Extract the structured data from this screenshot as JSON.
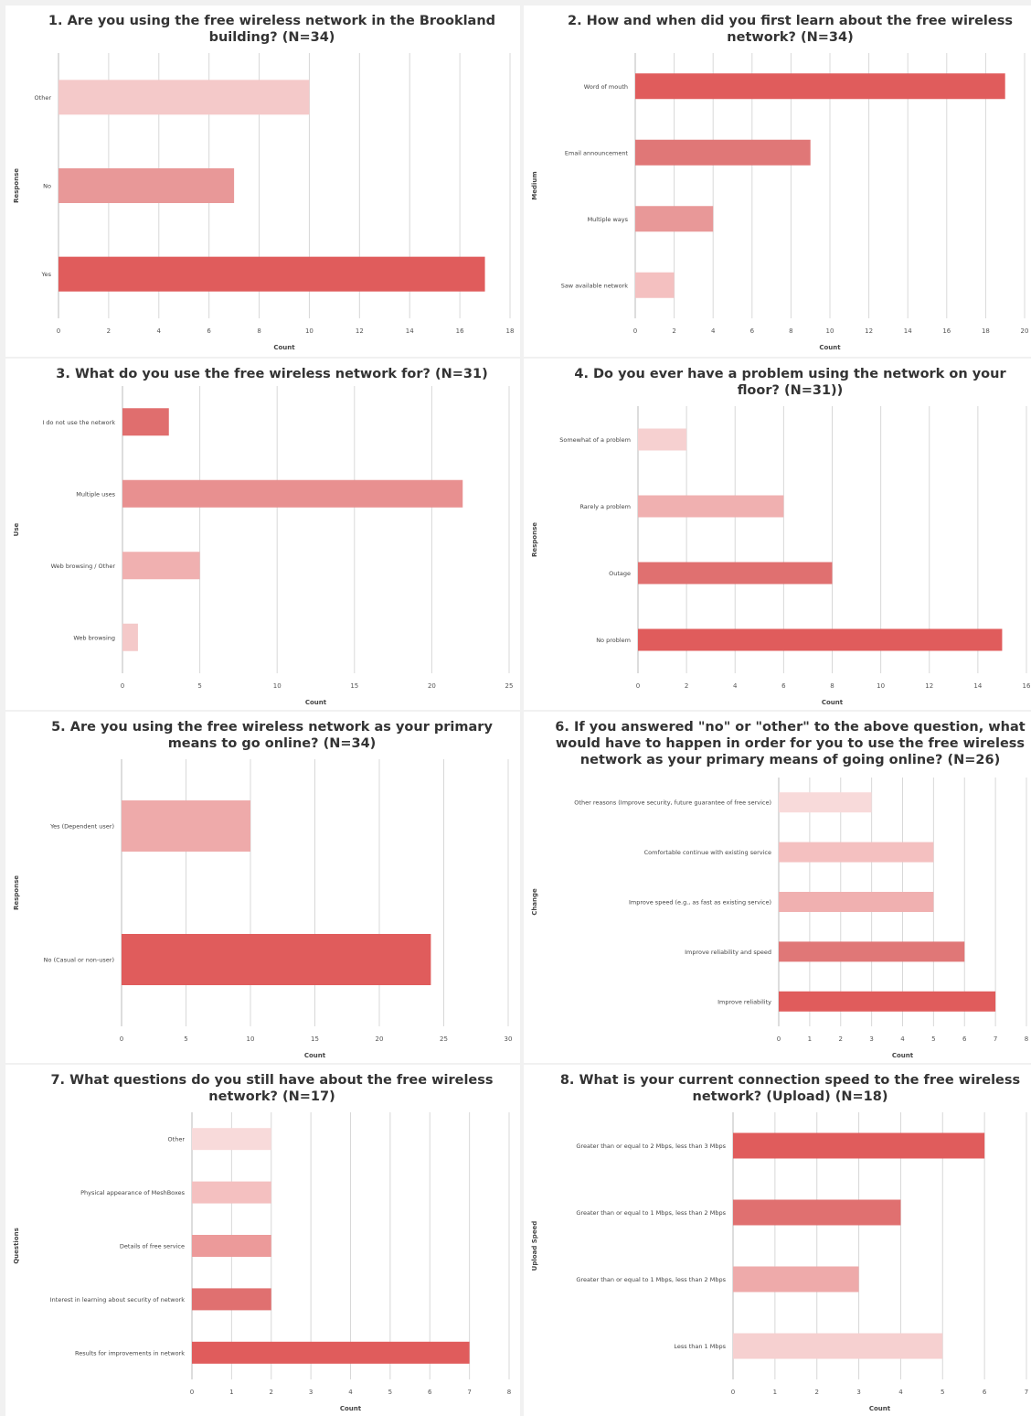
{
  "chart_data": [
    {
      "type": "bar",
      "title": "1. Are you using the free wireless network in the Brookland building? (N=34)",
      "ylabel": "Response",
      "xlabel": "Count",
      "xlim": [
        0,
        18
      ],
      "xticks": [
        "0",
        "2",
        "4",
        "6",
        "8",
        "10",
        "12",
        "14",
        "16",
        "18"
      ],
      "categories": [
        "Other",
        "No",
        "Yes"
      ],
      "values": [
        10,
        7,
        17
      ],
      "colors": [
        "#f4c9c9",
        "#e89898",
        "#e05c5c"
      ]
    },
    {
      "type": "bar",
      "title": "2. How and when did you first learn about the free wireless network? (N=34)",
      "ylabel": "Medium",
      "xlabel": "Count",
      "xlim": [
        0,
        20
      ],
      "xticks": [
        "0",
        "2",
        "4",
        "6",
        "8",
        "10",
        "12",
        "14",
        "16",
        "18",
        "20"
      ],
      "categories": [
        "Word of mouth",
        "Email announcement",
        "Multiple ways",
        "Saw available network"
      ],
      "values": [
        19,
        9,
        4,
        2
      ],
      "colors": [
        "#e05c5c",
        "#e07777",
        "#e89898",
        "#f4c0c0"
      ]
    },
    {
      "type": "bar",
      "title": "3. What do you use the free wireless network for? (N=31)",
      "ylabel": "Use",
      "xlabel": "Count",
      "xlim": [
        0,
        25
      ],
      "xticks": [
        "0",
        "5",
        "10",
        "15",
        "20",
        "25"
      ],
      "categories": [
        "I do not use the network",
        "Multiple uses",
        "Web browsing / Other",
        "Web browsing"
      ],
      "values": [
        3,
        22,
        5,
        1
      ],
      "colors": [
        "#e06e6e",
        "#e89090",
        "#f0b0b0",
        "#f4c9c9"
      ]
    },
    {
      "type": "bar",
      "title": "4. Do you ever have a problem using the network on your floor? (N=31))",
      "ylabel": "Response",
      "xlabel": "Count",
      "xlim": [
        0,
        16
      ],
      "xticks": [
        "0",
        "2",
        "4",
        "6",
        "8",
        "10",
        "12",
        "14",
        "16"
      ],
      "categories": [
        "Somewhat of a problem",
        "Rarely a problem",
        "Outage",
        "No problem"
      ],
      "values": [
        2,
        6,
        8,
        15
      ],
      "colors": [
        "#f6d0d0",
        "#f0b0b0",
        "#e07070",
        "#e05c5c"
      ]
    },
    {
      "type": "bar",
      "title": "5. Are you using the free wireless network as your primary means to go online? (N=34)",
      "ylabel": "Response",
      "xlabel": "Count",
      "xlim": [
        0,
        30
      ],
      "xticks": [
        "0",
        "5",
        "10",
        "15",
        "20",
        "25",
        "30"
      ],
      "categories": [
        "Yes (Dependent user)",
        "No (Casual or non-user)"
      ],
      "values": [
        10,
        24
      ],
      "colors": [
        "#eeaaaa",
        "#e05c5c"
      ]
    },
    {
      "type": "bar",
      "title": "6. If you answered \"no\" or \"other\" to the above question, what would have to happen in order for you to use the free wireless network as your primary means of going online? (N=26)",
      "ylabel": "Change",
      "xlabel": "Count",
      "xlim": [
        0,
        8
      ],
      "xticks": [
        "0",
        "1",
        "2",
        "3",
        "4",
        "5",
        "6",
        "7",
        "8"
      ],
      "categories": [
        "Other reasons (Improve security, future guarantee of free service)",
        "Comfortable continue with existing service",
        "Improve speed (e.g., as fast as existing service)",
        "Improve reliability and speed",
        "Improve reliability"
      ],
      "values": [
        3,
        5,
        5,
        6,
        7
      ],
      "colors": [
        "#f8dada",
        "#f4c0c0",
        "#f0b0b0",
        "#e07777",
        "#e05c5c"
      ]
    },
    {
      "type": "bar",
      "title": "7. What questions do you still have about the free wireless network? (N=17)",
      "ylabel": "Questions",
      "xlabel": "Count",
      "xlim": [
        0,
        8
      ],
      "xticks": [
        "0",
        "1",
        "2",
        "3",
        "4",
        "5",
        "6",
        "7",
        "8"
      ],
      "categories": [
        "Other",
        "Physical appearance of MeshBoxes",
        "Details of free service",
        "Interest in learning about security of network",
        "Results for improvements in network"
      ],
      "values": [
        2,
        2,
        2,
        2,
        7
      ],
      "colors": [
        "#f8dada",
        "#f4c0c0",
        "#ec9a9a",
        "#e07070",
        "#e05c5c"
      ]
    },
    {
      "type": "bar",
      "title": "8. What is your current connection speed to the free wireless network? (Upload) (N=18)",
      "ylabel": "Upload Speed",
      "xlabel": "Count",
      "xlim": [
        0,
        7
      ],
      "xticks": [
        "0",
        "1",
        "2",
        "3",
        "4",
        "5",
        "6",
        "7"
      ],
      "categories": [
        "Greater than or equal to 2 Mbps, less than 3 Mbps",
        "Greater than or equal to 1 Mbps, less than 2 Mbps",
        "Greater than or equal to 1 Mbps, less than 2 Mbps",
        "Less than 1 Mbps"
      ],
      "values": [
        6,
        4,
        3,
        5
      ],
      "colors": [
        "#e05c5c",
        "#e07070",
        "#eeaaaa",
        "#f6d0d0"
      ]
    }
  ]
}
